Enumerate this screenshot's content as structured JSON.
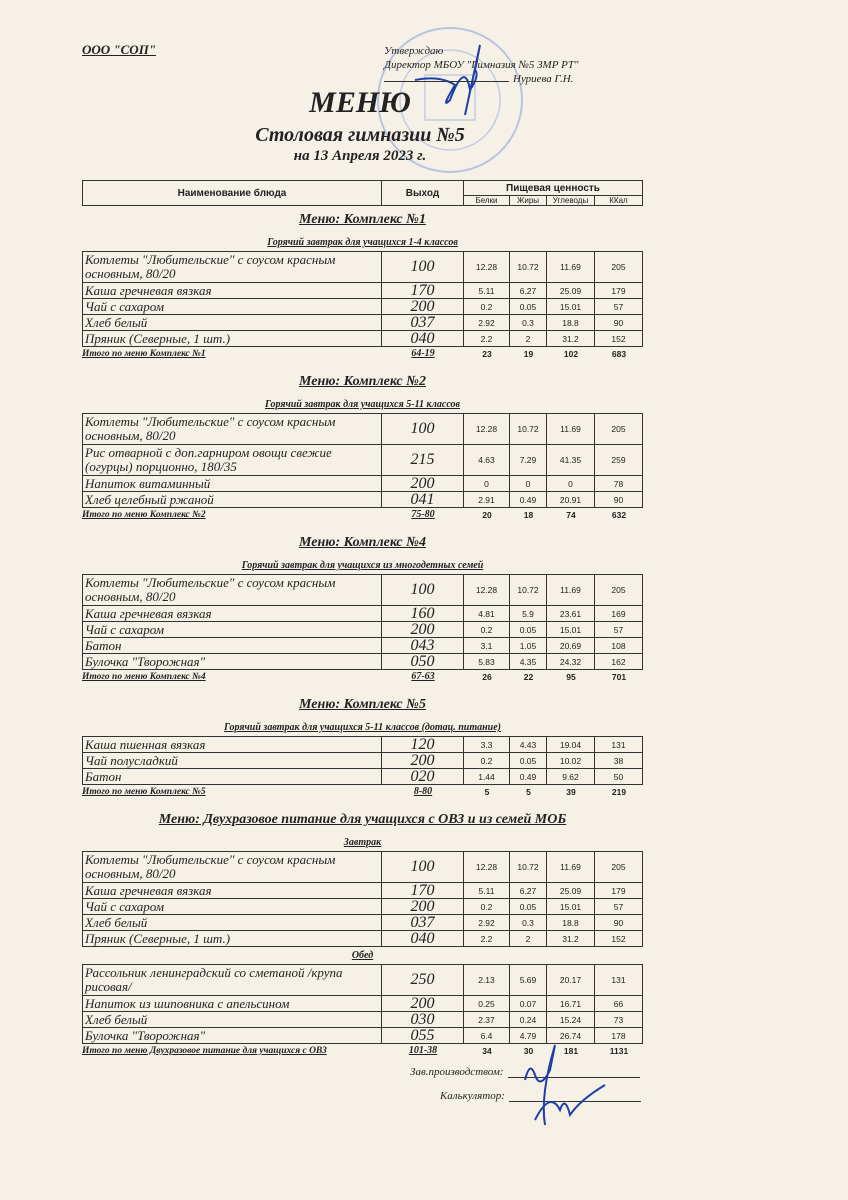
{
  "header": {
    "organization": "ООО \"СОП\"",
    "approval": [
      "Утверждаю",
      "Директор МБОУ \"Гимназия №5 ЗМР РТ\"",
      "Нуриева Г.Н."
    ],
    "title": "МЕНЮ",
    "subtitle": "Столовая гимназии №5",
    "date": "на 13 Апреля 2023 г."
  },
  "columns": {
    "name": "Наименование блюда",
    "yield": "Выход",
    "nutrition": "Пищевая ценность",
    "proteins": "Белки",
    "fats": "Жиры",
    "carbs": "Углеводы",
    "kcal": "ККал"
  },
  "sections": [
    {
      "title": "Меню: Комплекс №1",
      "groups": [
        {
          "subtitle": "Горячий завтрак для учащихся 1-4 классов",
          "rows": [
            {
              "name": "Котлеты  \"Любительские\" с соусом красным основным, 80/20",
              "yield": "100",
              "p": "12.28",
              "f": "10.72",
              "c": "11.69",
              "k": "205",
              "tall": true
            },
            {
              "name": "Каша гречневая вязкая",
              "yield": "170",
              "p": "5.11",
              "f": "6.27",
              "c": "25.09",
              "k": "179"
            },
            {
              "name": "Чай с сахаром",
              "yield": "200",
              "p": "0.2",
              "f": "0.05",
              "c": "15.01",
              "k": "57"
            },
            {
              "name": "Хлеб белый",
              "yield": "037",
              "p": "2.92",
              "f": "0.3",
              "c": "18.8",
              "k": "90"
            },
            {
              "name": "Пряник (Северные, 1 шт.)",
              "yield": "040",
              "p": "2.2",
              "f": "2",
              "c": "31.2",
              "k": "152"
            }
          ]
        }
      ],
      "total": {
        "label": "Итого по меню Комплекс №1",
        "price": "64-19",
        "p": "23",
        "f": "19",
        "c": "102",
        "k": "683"
      }
    },
    {
      "title": "Меню: Комплекс №2",
      "groups": [
        {
          "subtitle": "Горячий завтрак для учащихся 5-11 классов",
          "rows": [
            {
              "name": "Котлеты  \"Любительские\" с соусом красным основным, 80/20",
              "yield": "100",
              "p": "12.28",
              "f": "10.72",
              "c": "11.69",
              "k": "205",
              "tall": true
            },
            {
              "name": "Рис отварной с доп.гарниром овощи свежие (огурцы) порционно, 180/35",
              "yield": "215",
              "p": "4.63",
              "f": "7.29",
              "c": "41.35",
              "k": "259",
              "tall": true
            },
            {
              "name": "Напиток витаминный",
              "yield": "200",
              "p": "0",
              "f": "0",
              "c": "0",
              "k": "78"
            },
            {
              "name": "Хлеб  целебный ржаной",
              "yield": "041",
              "p": "2.91",
              "f": "0.49",
              "c": "20.91",
              "k": "90"
            }
          ]
        }
      ],
      "total": {
        "label": "Итого по меню Комплекс №2",
        "price": "75-80",
        "p": "20",
        "f": "18",
        "c": "74",
        "k": "632"
      }
    },
    {
      "title": "Меню: Комплекс №4",
      "groups": [
        {
          "subtitle": "Горячий завтрак для учащихся из многодетных семей",
          "rows": [
            {
              "name": "Котлеты  \"Любительские\" с соусом красным основным, 80/20",
              "yield": "100",
              "p": "12.28",
              "f": "10.72",
              "c": "11.69",
              "k": "205",
              "tall": true
            },
            {
              "name": "Каша гречневая вязкая",
              "yield": "160",
              "p": "4.81",
              "f": "5.9",
              "c": "23.61",
              "k": "169"
            },
            {
              "name": "Чай с сахаром",
              "yield": "200",
              "p": "0.2",
              "f": "0.05",
              "c": "15.01",
              "k": "57"
            },
            {
              "name": "Батон",
              "yield": "043",
              "p": "3.1",
              "f": "1.05",
              "c": "20.69",
              "k": "108"
            },
            {
              "name": "Булочка \"Творожная\"",
              "yield": "050",
              "p": "5.83",
              "f": "4.35",
              "c": "24.32",
              "k": "162"
            }
          ]
        }
      ],
      "total": {
        "label": "Итого по меню Комплекс №4",
        "price": "67-63",
        "p": "26",
        "f": "22",
        "c": "95",
        "k": "701"
      }
    },
    {
      "title": "Меню: Комплекс №5",
      "groups": [
        {
          "subtitle": "Горячий завтрак для учащихся 5-11 классов (дотац. питание)",
          "rows": [
            {
              "name": "Каша пшенная вязкая",
              "yield": "120",
              "p": "3.3",
              "f": "4.43",
              "c": "19.04",
              "k": "131"
            },
            {
              "name": "Чай полусладкий",
              "yield": "200",
              "p": "0.2",
              "f": "0.05",
              "c": "10.02",
              "k": "38"
            },
            {
              "name": "Батон",
              "yield": "020",
              "p": "1.44",
              "f": "0.49",
              "c": "9.62",
              "k": "50"
            }
          ]
        }
      ],
      "total": {
        "label": "Итого по меню Комплекс №5",
        "price": "8-80",
        "p": "5",
        "f": "5",
        "c": "39",
        "k": "219"
      }
    },
    {
      "title": "Меню: Двухразовое питание для учащихся с ОВЗ и из семей МОБ",
      "groups": [
        {
          "subtitle": "Завтрак",
          "rows": [
            {
              "name": "Котлеты  \"Любительские\" с соусом красным основным, 80/20",
              "yield": "100",
              "p": "12.28",
              "f": "10.72",
              "c": "11.69",
              "k": "205",
              "tall": true
            },
            {
              "name": "Каша гречневая вязкая",
              "yield": "170",
              "p": "5.11",
              "f": "6.27",
              "c": "25.09",
              "k": "179"
            },
            {
              "name": "Чай с сахаром",
              "yield": "200",
              "p": "0.2",
              "f": "0.05",
              "c": "15.01",
              "k": "57"
            },
            {
              "name": "Хлеб белый",
              "yield": "037",
              "p": "2.92",
              "f": "0.3",
              "c": "18.8",
              "k": "90"
            },
            {
              "name": "Пряник (Северные, 1 шт.)",
              "yield": "040",
              "p": "2.2",
              "f": "2",
              "c": "31.2",
              "k": "152"
            }
          ]
        },
        {
          "subtitle": "Обед",
          "rows": [
            {
              "name": "Рассольник ленинградский со сметаной /крупа рисовая/",
              "yield": "250",
              "p": "2.13",
              "f": "5.69",
              "c": "20.17",
              "k": "131",
              "tall": true
            },
            {
              "name": "Напиток из шиповника с апельсином",
              "yield": "200",
              "p": "0.25",
              "f": "0.07",
              "c": "16.71",
              "k": "66"
            },
            {
              "name": "Хлеб белый",
              "yield": "030",
              "p": "2.37",
              "f": "0.24",
              "c": "15.24",
              "k": "73"
            },
            {
              "name": "Булочка \"Творожная\"",
              "yield": "055",
              "p": "6.4",
              "f": "4.79",
              "c": "26.74",
              "k": "178"
            }
          ]
        }
      ],
      "total": {
        "label": "Итого по меню Двухразовое питание для учащихся с ОВЗ",
        "price": "101-38",
        "p": "34",
        "f": "30",
        "c": "181",
        "k": "1131"
      }
    }
  ],
  "signatures": {
    "production_head": "Зав.производством:",
    "calculator": "Калькулятор:"
  },
  "colors": {
    "paper": "#f6f1e6",
    "stamp": "#5b7fc4",
    "ink": "#1d3fa8"
  }
}
